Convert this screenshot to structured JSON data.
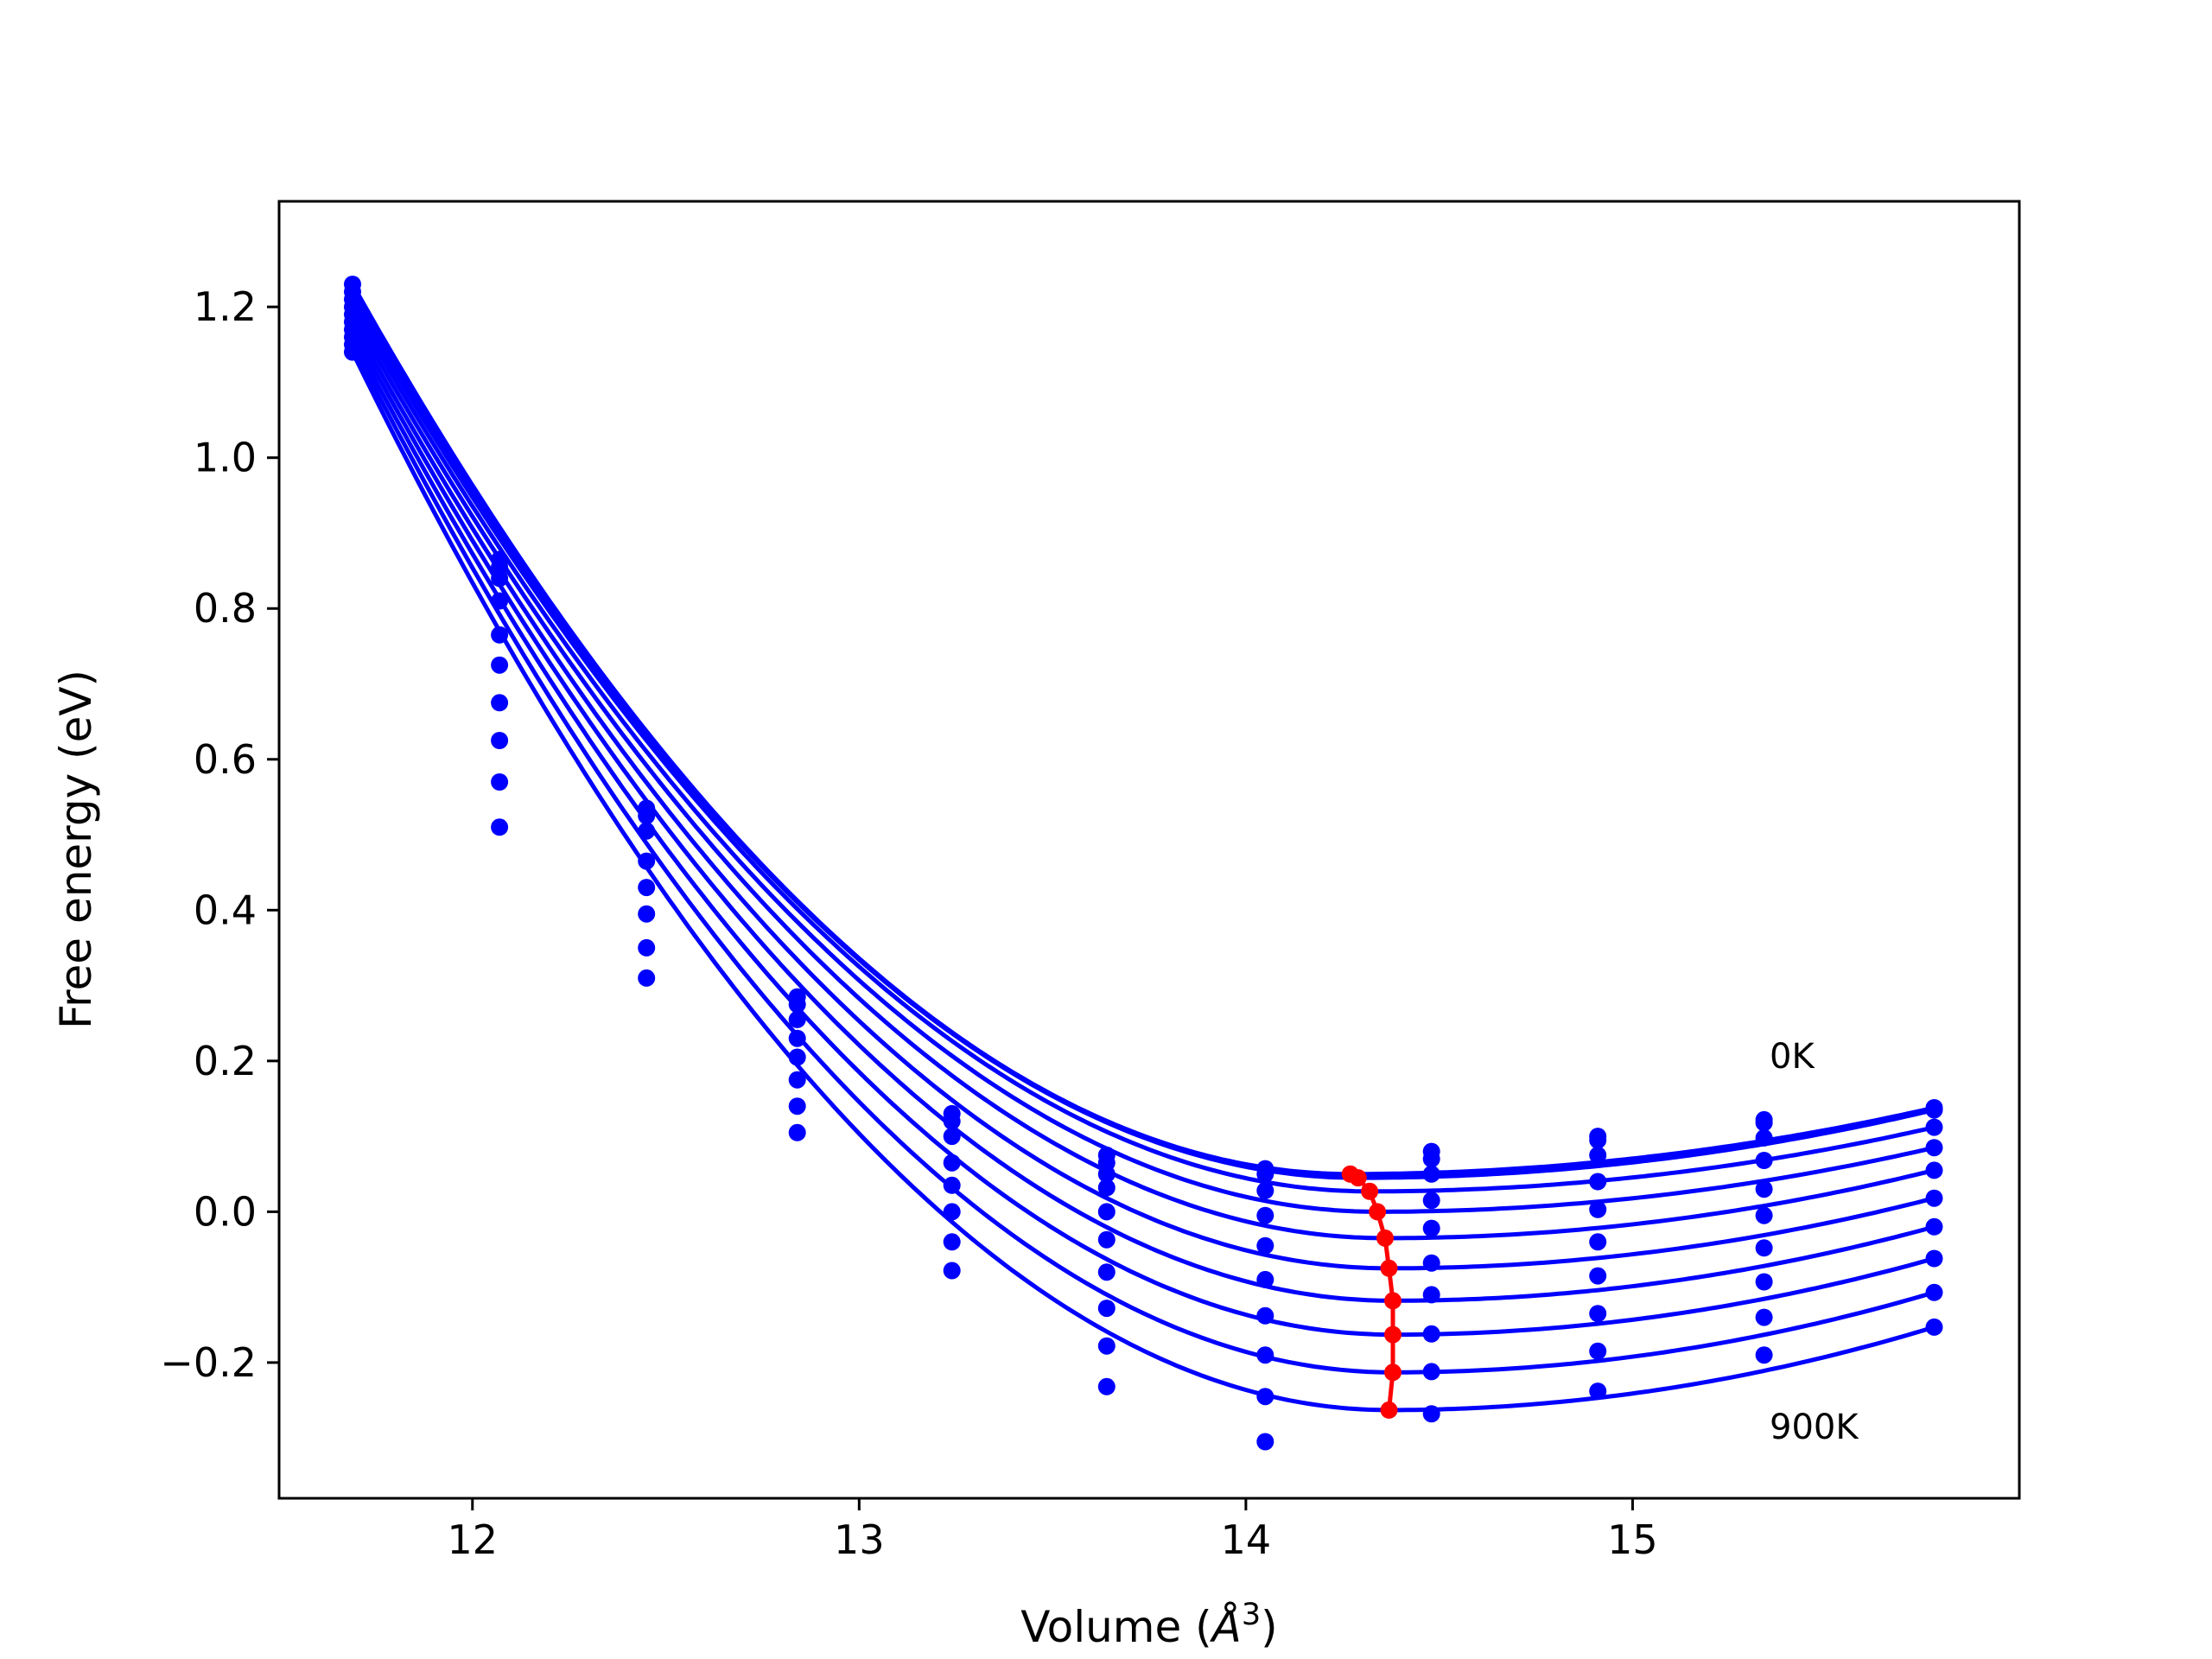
{
  "chart_data": {
    "type": "line",
    "title": "",
    "xlabel": "Volume (",
    "xlabel_unit": "Å",
    "xlabel_sup": "3",
    "xlabel_close": ")",
    "ylabel": "Free energy (eV)",
    "xlim": [
      11.5,
      16.0
    ],
    "ylim": [
      -0.38,
      1.34
    ],
    "xticks": [
      12,
      13,
      14,
      15
    ],
    "xtick_labels": [
      "12",
      "13",
      "14",
      "15"
    ],
    "yticks": [
      -0.2,
      0.0,
      0.2,
      0.4,
      0.6,
      0.8,
      1.0,
      1.2
    ],
    "ytick_labels": [
      "−0.2",
      "0.0",
      "0.2",
      "0.4",
      "0.6",
      "0.8",
      "1.0",
      "1.2"
    ],
    "annotations": [
      {
        "text": "0K",
        "x": 15.34,
        "y": 0.2
      },
      {
        "text": "900K",
        "x": 15.34,
        "y": -0.29
      }
    ],
    "colors": {
      "fit": "#0000ff",
      "points": "#0000ff",
      "minima": "#ff0000"
    },
    "x_points": [
      11.69,
      12.07,
      12.45,
      12.84,
      13.24,
      13.64,
      14.05,
      14.48,
      14.91,
      15.34,
      15.78
    ],
    "x_range_fit": [
      11.69,
      15.78
    ],
    "series": [
      {
        "V0": 14.27,
        "E0": 0.05,
        "values": [
          1.23,
          0.865,
          0.535,
          0.285,
          0.13,
          0.075,
          0.057,
          0.08,
          0.1,
          0.122,
          0.138
        ]
      },
      {
        "V0": 14.29,
        "E0": 0.045,
        "values": [
          1.22,
          0.855,
          0.525,
          0.275,
          0.12,
          0.065,
          0.05,
          0.07,
          0.095,
          0.118,
          0.135
        ]
      },
      {
        "V0": 14.32,
        "E0": 0.027,
        "values": [
          1.21,
          0.84,
          0.505,
          0.255,
          0.1,
          0.05,
          0.028,
          0.05,
          0.075,
          0.098,
          0.112
        ]
      },
      {
        "V0": 14.34,
        "E0": 0.0,
        "values": [
          1.2,
          0.81,
          0.465,
          0.23,
          0.065,
          0.032,
          -0.005,
          0.015,
          0.04,
          0.068,
          0.085
        ]
      },
      {
        "V0": 14.36,
        "E0": -0.035,
        "values": [
          1.19,
          0.765,
          0.43,
          0.205,
          0.035,
          0.0,
          -0.045,
          -0.022,
          0.003,
          0.03,
          0.055
        ]
      },
      {
        "V0": 14.37,
        "E0": -0.075,
        "values": [
          1.18,
          0.725,
          0.395,
          0.175,
          0.0,
          -0.037,
          -0.09,
          -0.068,
          -0.04,
          -0.005,
          0.018
        ]
      },
      {
        "V0": 14.38,
        "E0": -0.118,
        "values": [
          1.17,
          0.675,
          0.35,
          0.14,
          -0.04,
          -0.08,
          -0.138,
          -0.11,
          -0.085,
          -0.048,
          -0.02
        ]
      },
      {
        "V0": 14.38,
        "E0": -0.163,
        "values": [
          1.16,
          0.625,
          0.31,
          0.105,
          -0.078,
          -0.128,
          -0.19,
          -0.162,
          -0.135,
          -0.093,
          -0.062
        ]
      },
      {
        "V0": 14.38,
        "E0": -0.213,
        "values": [
          1.15,
          0.57,
          null,
          null,
          null,
          -0.178,
          -0.245,
          -0.212,
          -0.185,
          -0.14,
          -0.107
        ]
      },
      {
        "V0": 14.37,
        "E0": -0.263,
        "values": [
          1.14,
          0.51,
          null,
          null,
          null,
          -0.232,
          -0.305,
          -0.268,
          -0.238,
          -0.19,
          -0.153
        ]
      }
    ],
    "minima": [
      {
        "x": 14.27,
        "y": 0.05
      },
      {
        "x": 14.29,
        "y": 0.045
      },
      {
        "x": 14.32,
        "y": 0.027
      },
      {
        "x": 14.34,
        "y": 0.0
      },
      {
        "x": 14.36,
        "y": -0.035
      },
      {
        "x": 14.37,
        "y": -0.075
      },
      {
        "x": 14.38,
        "y": -0.118
      },
      {
        "x": 14.38,
        "y": -0.163
      },
      {
        "x": 14.38,
        "y": -0.213
      },
      {
        "x": 14.37,
        "y": -0.263
      }
    ]
  }
}
